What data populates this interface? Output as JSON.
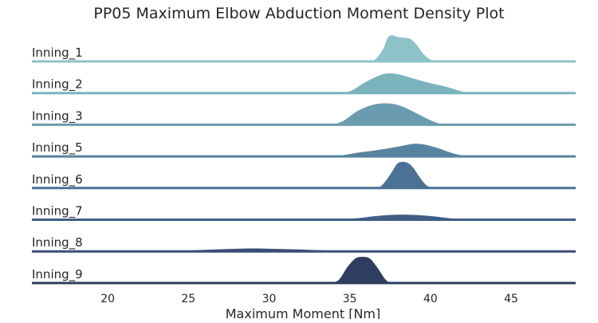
{
  "chart_data": {
    "type": "area",
    "subtype": "ridgeline-density",
    "title": "PP05 Maximum Elbow Abduction Moment Density Plot",
    "xlabel": "Maximum Moment [Nm]",
    "ylabel": "",
    "xlim": [
      15.3,
      49.0
    ],
    "xticks": [
      20,
      25,
      30,
      35,
      40,
      45
    ],
    "grid": false,
    "legend": "none",
    "series": [
      {
        "name": "Inning_1",
        "color": "#8dc2c8",
        "x": [
          36.0,
          36.5,
          37.0,
          37.3,
          37.6,
          38.0,
          38.4,
          38.8,
          39.2,
          39.6,
          40.0,
          40.4,
          41.0
        ],
        "y": [
          0.0,
          0.08,
          0.45,
          0.88,
          1.0,
          0.93,
          0.91,
          0.85,
          0.62,
          0.3,
          0.1,
          0.03,
          0.0
        ]
      },
      {
        "name": "Inning_2",
        "color": "#7bb3bd",
        "x": [
          34.0,
          35.0,
          36.0,
          37.0,
          37.6,
          38.2,
          39.0,
          40.0,
          41.0,
          42.0,
          42.5,
          43.0
        ],
        "y": [
          0.0,
          0.1,
          0.45,
          0.72,
          0.76,
          0.7,
          0.56,
          0.4,
          0.26,
          0.08,
          0.02,
          0.0
        ]
      },
      {
        "name": "Inning_3",
        "color": "#6a9cae",
        "x": [
          33.8,
          34.6,
          35.5,
          36.5,
          37.4,
          38.2,
          39.0,
          40.0,
          40.8,
          41.5
        ],
        "y": [
          0.0,
          0.18,
          0.55,
          0.78,
          0.82,
          0.72,
          0.5,
          0.2,
          0.04,
          0.0
        ]
      },
      {
        "name": "Inning_5",
        "color": "#58839f",
        "x": [
          33.5,
          34.5,
          35.5,
          36.5,
          37.5,
          38.3,
          39.0,
          39.7,
          40.5,
          41.5,
          42.5,
          43.5
        ],
        "y": [
          0.0,
          0.07,
          0.17,
          0.25,
          0.34,
          0.43,
          0.5,
          0.46,
          0.33,
          0.13,
          0.03,
          0.0
        ]
      },
      {
        "name": "Inning_6",
        "color": "#4b7195",
        "x": [
          36.6,
          37.0,
          37.5,
          37.9,
          38.3,
          38.7,
          39.0,
          39.4,
          39.8,
          40.3
        ],
        "y": [
          0.0,
          0.15,
          0.55,
          0.92,
          1.0,
          0.93,
          0.75,
          0.4,
          0.12,
          0.0
        ]
      },
      {
        "name": "Inning_7",
        "color": "#3f5e85",
        "x": [
          32.0,
          34.0,
          35.5,
          36.5,
          37.5,
          38.3,
          39.0,
          40.0,
          41.0,
          42.5,
          44.0
        ],
        "y": [
          0.0,
          0.03,
          0.09,
          0.16,
          0.21,
          0.22,
          0.21,
          0.17,
          0.1,
          0.02,
          0.0
        ]
      },
      {
        "name": "Inning_8",
        "color": "#3a4f75",
        "x": [
          22.0,
          24.0,
          26.0,
          28.0,
          29.0,
          30.0,
          32.0,
          34.0,
          36.0,
          38.0,
          39.0
        ],
        "y": [
          0.0,
          0.04,
          0.09,
          0.13,
          0.14,
          0.13,
          0.1,
          0.06,
          0.03,
          0.01,
          0.0
        ]
      },
      {
        "name": "Inning_9",
        "color": "#2e3d60",
        "x": [
          33.8,
          34.3,
          34.8,
          35.3,
          35.8,
          36.3,
          36.8,
          37.3,
          37.8
        ],
        "y": [
          0.0,
          0.15,
          0.6,
          0.93,
          1.0,
          0.92,
          0.55,
          0.12,
          0.0
        ]
      }
    ]
  }
}
